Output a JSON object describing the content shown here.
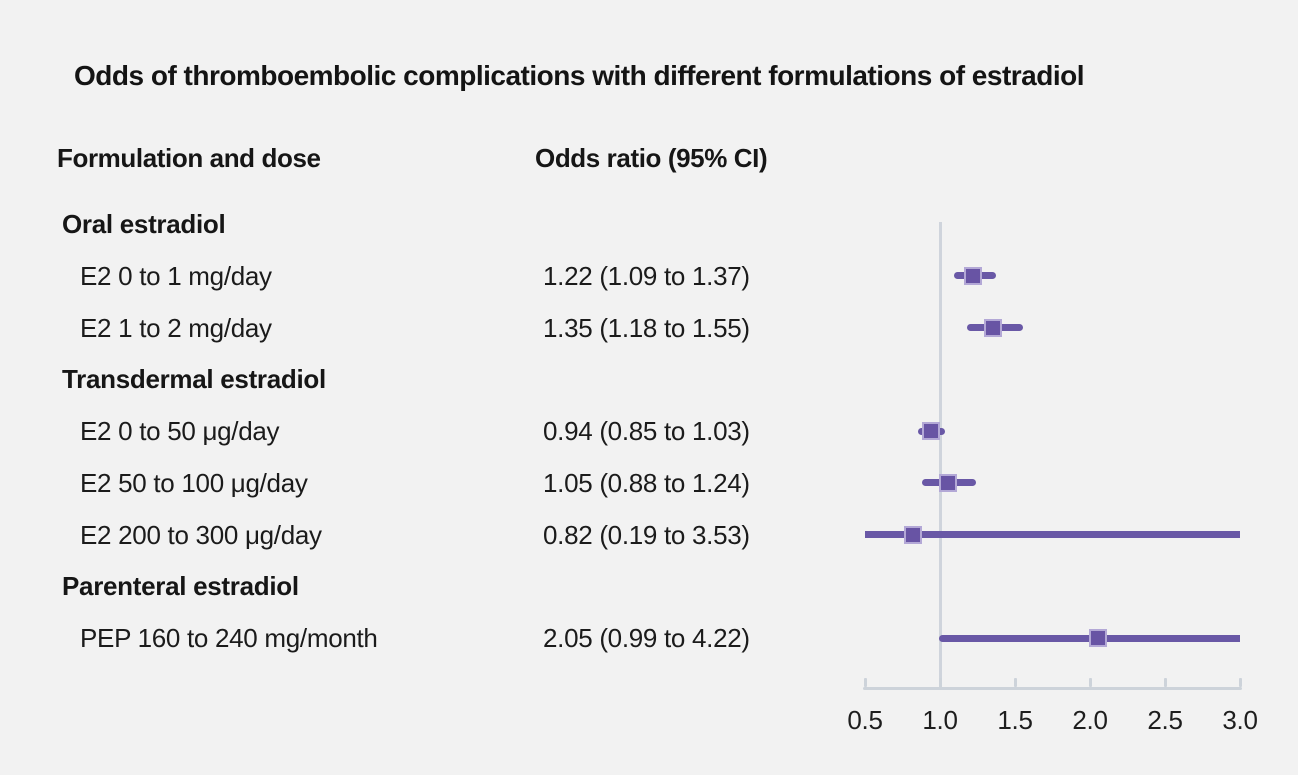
{
  "columns": {
    "formulation": "Formulation and dose",
    "odds": "Odds ratio (95% CI)"
  },
  "colors": {
    "background": "#f2f2f2",
    "text": "#1b1b1b",
    "ci_bar": "#6958a6",
    "marker_fill": "#6854a4",
    "marker_border": "#b3a8d6",
    "axis_line": "#cdd3da",
    "reference_line": "#cfd4dc"
  },
  "chart_data": {
    "type": "scatter",
    "variant": "forest-plot",
    "title": "Odds of thromboembolic complications with different formulations of estradiol",
    "xlabel": "",
    "ylabel": "",
    "axis": {
      "xlim": [
        0.5,
        3.0
      ],
      "ticks": [
        "0.5",
        "1.0",
        "1.5",
        "2.0",
        "2.5",
        "3.0"
      ],
      "tick_values": [
        0.5,
        1.0,
        1.5,
        2.0,
        2.5,
        3.0
      ],
      "reference_value": 1.0,
      "grid": false
    },
    "rows": [
      {
        "kind": "section",
        "label": "Oral estradiol"
      },
      {
        "kind": "item",
        "label": "E2 0 to 1 mg/day",
        "value_text": "1.22 (1.09 to 1.37)",
        "or": 1.22,
        "lo": 1.09,
        "hi": 1.37
      },
      {
        "kind": "item",
        "label": "E2 1 to 2 mg/day",
        "value_text": "1.35 (1.18 to 1.55)",
        "or": 1.35,
        "lo": 1.18,
        "hi": 1.55
      },
      {
        "kind": "section",
        "label": "Transdermal estradiol"
      },
      {
        "kind": "item",
        "label": "E2 0 to 50 μg/day",
        "value_text": "0.94 (0.85 to 1.03)",
        "or": 0.94,
        "lo": 0.85,
        "hi": 1.03
      },
      {
        "kind": "item",
        "label": "E2 50 to 100 μg/day",
        "value_text": "1.05 (0.88 to 1.24)",
        "or": 1.05,
        "lo": 0.88,
        "hi": 1.24
      },
      {
        "kind": "item",
        "label": "E2 200 to 300 μg/day",
        "value_text": "0.82 (0.19 to 3.53)",
        "or": 0.82,
        "lo": 0.19,
        "hi": 3.53
      },
      {
        "kind": "section",
        "label": "Parenteral estradiol"
      },
      {
        "kind": "item",
        "label": "PEP 160 to 240 mg/month",
        "value_text": "2.05 (0.99 to 4.22)",
        "or": 2.05,
        "lo": 0.99,
        "hi": 4.22
      }
    ]
  }
}
